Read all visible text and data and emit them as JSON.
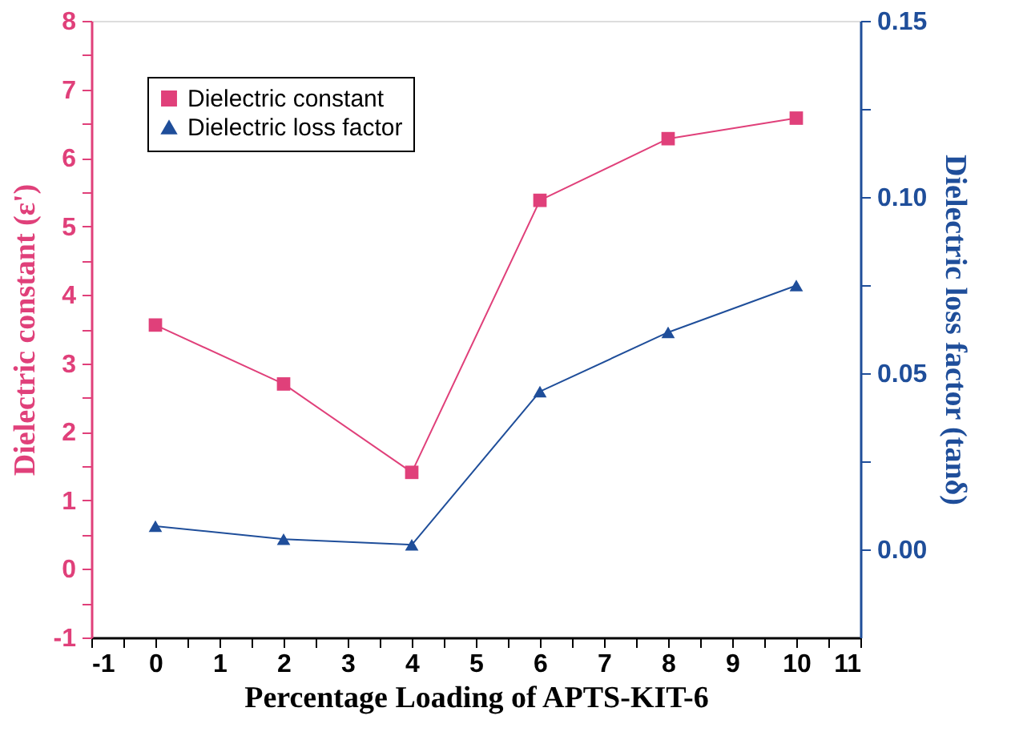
{
  "chart_data": {
    "type": "line",
    "xlabel": "Percentage Loading of APTS-KIT-6",
    "ylabel": "Dielectric constant (ε')",
    "y2label": "Dielectric loss factor (tanδ)",
    "x": [
      0,
      2,
      4,
      6,
      8,
      10
    ],
    "series": [
      {
        "name": "Dielectric constant",
        "color": "#e0407a",
        "marker": "square",
        "values": [
          3.56,
          2.7,
          1.41,
          5.38,
          6.28,
          6.58
        ]
      },
      {
        "name": "Dielectric loss factor",
        "color": "#1f4e9a",
        "marker": "triangle",
        "axis": "y2",
        "values": [
          0.0066,
          0.0029,
          0.0013,
          0.0448,
          0.0616,
          0.0749
        ]
      }
    ],
    "xlim": [
      -1,
      11
    ],
    "xticks": [
      -1,
      {
        "value": -0.5,
        "label": null
      },
      0,
      {
        "value": 0.5,
        "label": null
      },
      1,
      {
        "value": 1.5,
        "label": null
      },
      2,
      {
        "value": 2.5,
        "label": null
      },
      3,
      {
        "value": 3.5,
        "label": null
      },
      4,
      {
        "value": 4.5,
        "label": null
      },
      5,
      {
        "value": 5.5,
        "label": null
      },
      6,
      {
        "value": 6.5,
        "label": null
      },
      7,
      {
        "value": 7.5,
        "label": null
      },
      8,
      {
        "value": 8.5,
        "label": null
      },
      9,
      {
        "value": 9.5,
        "label": null
      },
      10,
      {
        "value": 10.5,
        "label": null
      },
      11
    ],
    "ylim": [
      -1,
      8
    ],
    "yticks": [
      -1,
      {
        "value": -0.5,
        "label": null
      },
      0,
      {
        "value": 0.5,
        "label": null
      },
      1,
      {
        "value": 1.5,
        "label": null
      },
      2,
      {
        "value": 2.5,
        "label": null
      },
      3,
      {
        "value": 3.5,
        "label": null
      },
      4,
      {
        "value": 4.5,
        "label": null
      },
      5,
      {
        "value": 5.5,
        "label": null
      },
      6,
      {
        "value": 6.5,
        "label": null
      },
      7,
      {
        "value": 7.5,
        "label": null
      },
      8
    ],
    "y2lim": [
      -0.025,
      0.15
    ],
    "y2ticks": [
      {
        "value": 0,
        "label": "0.00"
      },
      {
        "value": 0.025,
        "label": null
      },
      {
        "value": 0.05,
        "label": "0.05"
      },
      {
        "value": 0.075,
        "label": null
      },
      {
        "value": 0.1,
        "label": "0.10"
      },
      {
        "value": 0.125,
        "label": null
      },
      {
        "value": 0.15,
        "label": "0.15"
      }
    ],
    "legend": "top left",
    "grid": false,
    "line_style": "solid"
  }
}
